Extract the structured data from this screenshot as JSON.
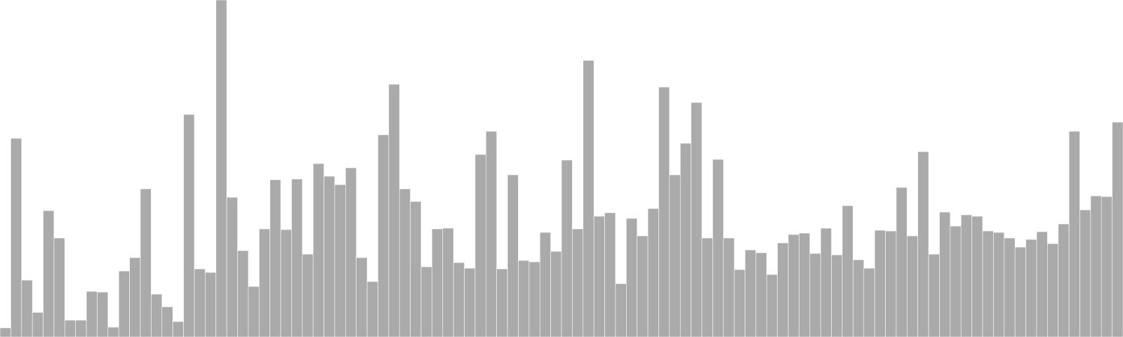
{
  "chart_data": {
    "type": "bar",
    "title": "",
    "xlabel": "",
    "ylabel": "",
    "bar_color": "#aaaaaa",
    "bar_edge_color": "#ffffff",
    "background": "#ffffff",
    "ylim": [
      0,
      480
    ],
    "grid": false,
    "legend": "none",
    "values": [
      13,
      283,
      81,
      35,
      180,
      141,
      24,
      24,
      65,
      64,
      14,
      94,
      113,
      211,
      61,
      43,
      22,
      317,
      97,
      92,
      480,
      199,
      123,
      72,
      154,
      224,
      153,
      225,
      118,
      247,
      229,
      217,
      241,
      113,
      79,
      288,
      360,
      211,
      193,
      100,
      154,
      155,
      106,
      98,
      260,
      293,
      97,
      231,
      109,
      107,
      149,
      122,
      252,
      154,
      394,
      172,
      177,
      76,
      169,
      144,
      183,
      356,
      231,
      276,
      334,
      141,
      253,
      141,
      96,
      124,
      120,
      89,
      134,
      146,
      148,
      119,
      155,
      117,
      187,
      110,
      98,
      152,
      151,
      213,
      144,
      264,
      118,
      178,
      158,
      174,
      172,
      151,
      149,
      141,
      128,
      139,
      150,
      133,
      161,
      293,
      181,
      201,
      200,
      306
    ]
  }
}
